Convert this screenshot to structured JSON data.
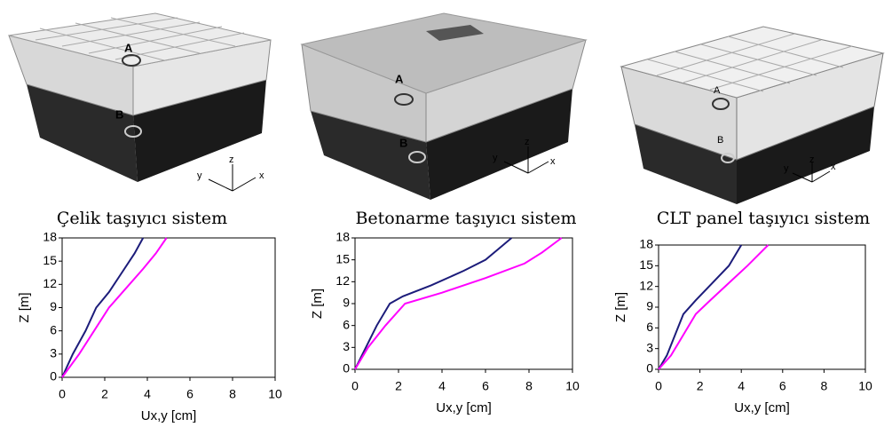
{
  "renderings": [
    {
      "labels": [
        "A",
        "B"
      ],
      "axes": [
        "z",
        "y",
        "x"
      ]
    },
    {
      "labels": [
        "A",
        "B"
      ],
      "axes": [
        "z",
        "y",
        "x"
      ]
    },
    {
      "labels": [
        "A",
        "B"
      ],
      "axes": [
        "z",
        "y",
        "x"
      ]
    }
  ],
  "chart_data": [
    {
      "type": "line",
      "title": "Çelik taşıyıcı sistem",
      "x_label": "Ux,y [cm]",
      "y_label": "Z [m]",
      "xlim": [
        0,
        10
      ],
      "ylim": [
        0,
        18
      ],
      "xticks": [
        0,
        2,
        4,
        6,
        8,
        10
      ],
      "yticks": [
        0,
        3,
        6,
        9,
        12,
        15,
        18
      ],
      "series": [
        {
          "color": "#1c1c7a",
          "x": [
            0,
            0.5,
            1.1,
            1.6,
            2.2,
            2.8,
            3.4,
            3.8
          ],
          "values": [
            0,
            3,
            6,
            9,
            11,
            13.5,
            16,
            18
          ]
        },
        {
          "color": "#ff00ff",
          "x": [
            0,
            0.8,
            1.5,
            2.2,
            3,
            3.8,
            4.4,
            4.9
          ],
          "values": [
            0,
            3,
            6,
            9,
            11.5,
            14,
            16,
            18
          ]
        }
      ]
    },
    {
      "type": "line",
      "title": "Betonarme taşıyıcı sistem",
      "x_label": "Ux,y [cm]",
      "y_label": "Z [m]",
      "xlim": [
        0,
        10
      ],
      "ylim": [
        0,
        18
      ],
      "xticks": [
        0,
        2,
        4,
        6,
        8,
        10
      ],
      "yticks": [
        0,
        3,
        6,
        9,
        12,
        15,
        18
      ],
      "series": [
        {
          "color": "#1c1c7a",
          "x": [
            0,
            0.5,
            1,
            1.6,
            2.2,
            3.5,
            5,
            6,
            6.6,
            7.2
          ],
          "values": [
            0,
            3,
            6,
            9,
            10,
            11.5,
            13.5,
            15,
            16.5,
            18
          ]
        },
        {
          "color": "#ff00ff",
          "x": [
            0,
            0.6,
            1.4,
            2.3,
            4,
            6,
            7.8,
            8.6,
            9.5
          ],
          "values": [
            0,
            3,
            6,
            9,
            10.5,
            12.5,
            14.5,
            16,
            18
          ]
        }
      ]
    },
    {
      "type": "line",
      "title": "CLT panel taşıyıcı sistem",
      "x_label": "Ux,y [cm]",
      "y_label": "Z [m]",
      "xlim": [
        0,
        10
      ],
      "ylim": [
        0,
        18
      ],
      "xticks": [
        0,
        2,
        4,
        6,
        8,
        10
      ],
      "yticks": [
        0,
        3,
        6,
        9,
        12,
        15,
        18
      ],
      "series": [
        {
          "color": "#1c1c7a",
          "x": [
            0,
            0.4,
            0.8,
            1.2,
            1.8,
            2.6,
            3.4,
            4
          ],
          "values": [
            0,
            2,
            5,
            8,
            10,
            12.5,
            15,
            18
          ]
        },
        {
          "color": "#ff00ff",
          "x": [
            0,
            0.6,
            1.2,
            1.8,
            2.5,
            3.4,
            4.3,
            5.3
          ],
          "values": [
            0,
            2,
            5,
            8,
            10,
            12.5,
            15,
            18
          ]
        }
      ]
    }
  ]
}
